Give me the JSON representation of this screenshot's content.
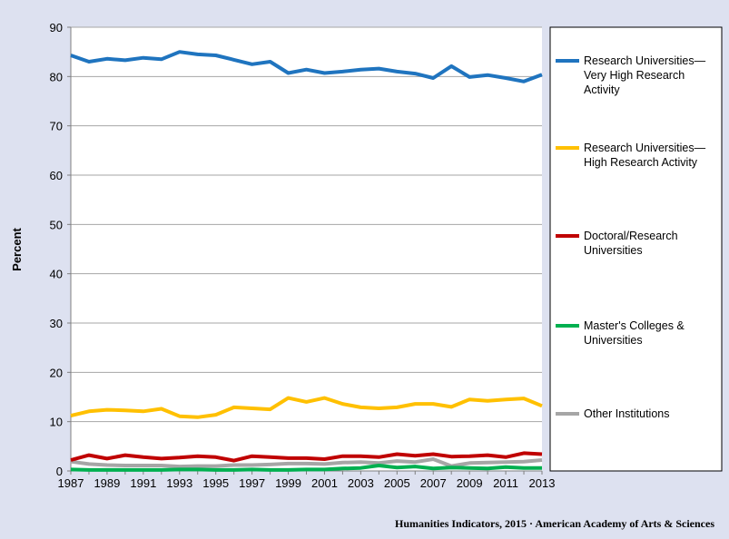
{
  "chart_data": {
    "type": "line",
    "title": "",
    "xlabel": "",
    "ylabel": "Percent",
    "ylim": [
      0,
      90
    ],
    "yticks": [
      0,
      10,
      20,
      30,
      40,
      50,
      60,
      70,
      80,
      90
    ],
    "xlim": [
      1987,
      2013
    ],
    "xticks": [
      1987,
      1989,
      1991,
      1993,
      1995,
      1997,
      1999,
      2001,
      2003,
      2005,
      2007,
      2009,
      2011,
      2013
    ],
    "grid": "horizontal",
    "legend_placement": "right",
    "x": [
      1987,
      1988,
      1989,
      1990,
      1991,
      1992,
      1993,
      1994,
      1995,
      1996,
      1997,
      1998,
      1999,
      2000,
      2001,
      2002,
      2003,
      2004,
      2005,
      2006,
      2007,
      2008,
      2009,
      2010,
      2011,
      2012,
      2013
    ],
    "series": [
      {
        "name": "Research Universities—Very High Research Activity",
        "legend_lines": [
          "Research Universities—",
          "Very High Research",
          "Activity"
        ],
        "color": "#1f74bf",
        "values": [
          84.3,
          83.0,
          83.6,
          83.3,
          83.8,
          83.5,
          85.0,
          84.5,
          84.3,
          83.4,
          82.5,
          83.0,
          80.7,
          81.4,
          80.7,
          81.0,
          81.4,
          81.6,
          81.0,
          80.6,
          79.7,
          82.1,
          79.9,
          80.3,
          79.7,
          79.0,
          80.4
        ]
      },
      {
        "name": "Research Universities—High Research Activity",
        "legend_lines": [
          "Research Universities—",
          "High Research Activity"
        ],
        "color": "#ffc000",
        "values": [
          11.2,
          12.1,
          12.4,
          12.3,
          12.1,
          12.6,
          11.1,
          10.9,
          11.4,
          12.9,
          12.7,
          12.5,
          14.8,
          14.0,
          14.8,
          13.6,
          12.9,
          12.7,
          12.9,
          13.6,
          13.6,
          13.0,
          14.5,
          14.2,
          14.5,
          14.7,
          13.2
        ]
      },
      {
        "name": "Doctoral/Research Universities",
        "legend_lines": [
          "Doctoral/Research",
          "Universities"
        ],
        "color": "#c00000",
        "values": [
          2.2,
          3.2,
          2.5,
          3.2,
          2.8,
          2.5,
          2.7,
          3.0,
          2.8,
          2.1,
          3.0,
          2.8,
          2.6,
          2.6,
          2.4,
          3.0,
          3.0,
          2.8,
          3.4,
          3.1,
          3.4,
          2.9,
          3.0,
          3.2,
          2.8,
          3.6,
          3.4
        ]
      },
      {
        "name": "Master's Colleges & Universities",
        "legend_lines": [
          "Master's Colleges &",
          "Universities"
        ],
        "color": "#00b050",
        "values": [
          0.3,
          0.2,
          0.2,
          0.2,
          0.2,
          0.2,
          0.3,
          0.3,
          0.2,
          0.2,
          0.3,
          0.2,
          0.2,
          0.3,
          0.3,
          0.5,
          0.6,
          1.1,
          0.7,
          0.9,
          0.5,
          0.7,
          0.6,
          0.5,
          0.8,
          0.6,
          0.6
        ]
      },
      {
        "name": "Other Institutions",
        "legend_lines": [
          "Other Institutions"
        ],
        "color": "#a6a6a6",
        "values": [
          1.9,
          1.4,
          1.2,
          1.1,
          1.1,
          1.1,
          0.9,
          1.0,
          1.0,
          1.2,
          1.2,
          1.3,
          1.5,
          1.5,
          1.4,
          1.7,
          1.8,
          1.6,
          2.0,
          1.8,
          2.4,
          1.0,
          1.6,
          1.7,
          1.8,
          1.9,
          2.2
        ]
      }
    ],
    "credit": "Humanities Indicators, 2015 · American Academy of Arts & Sciences"
  }
}
